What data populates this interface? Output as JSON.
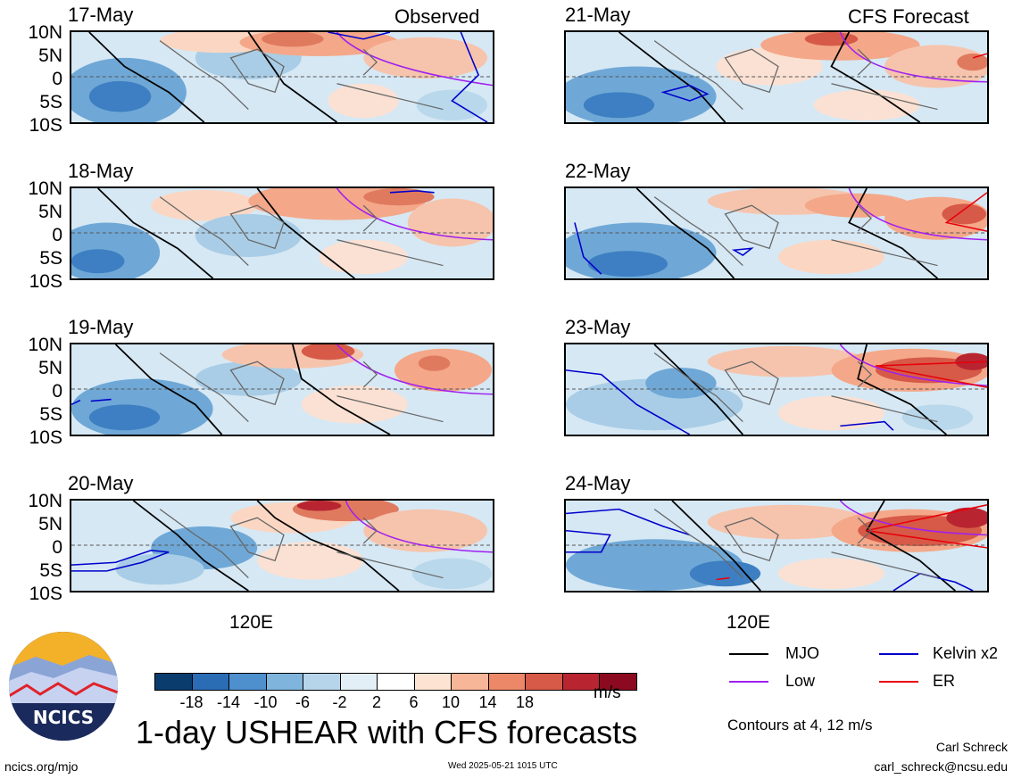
{
  "header": {
    "observed_label": "Observed",
    "forecast_label": "CFS Forecast"
  },
  "lat_labels": [
    "10N",
    "5N",
    "0",
    "5S",
    "10S"
  ],
  "lon_label": "120E",
  "panels_observed": [
    {
      "date": "17-May"
    },
    {
      "date": "18-May"
    },
    {
      "date": "19-May"
    },
    {
      "date": "20-May"
    }
  ],
  "panels_forecast": [
    {
      "date": "21-May"
    },
    {
      "date": "22-May"
    },
    {
      "date": "23-May"
    },
    {
      "date": "24-May"
    }
  ],
  "colorbar": {
    "colors": [
      "#0b3c6e",
      "#2a6db5",
      "#4e8fce",
      "#7fb4dc",
      "#b6d5ea",
      "#e3eff7",
      "#ffffff",
      "#fde3d2",
      "#f7b697",
      "#ec8868",
      "#d65a47",
      "#b82531",
      "#8c0a1f"
    ],
    "labels": [
      "-18",
      "-14",
      "-10",
      "-6",
      "-2",
      "2",
      "6",
      "10",
      "14",
      "18"
    ],
    "units": "m/s"
  },
  "legend": {
    "mjo": {
      "label": "MJO",
      "color": "#000000"
    },
    "low": {
      "label": "Low",
      "color": "#a020f0"
    },
    "kelvin": {
      "label": "Kelvin x2",
      "color": "#0000cd"
    },
    "er": {
      "label": "ER",
      "color": "#e8000b"
    },
    "contours_note": "Contours at 4, 12 m/s"
  },
  "title": "1-day USHEAR with CFS forecasts",
  "logo": {
    "text": "NCICS"
  },
  "footer": {
    "url": "ncics.org/mjo",
    "timestamp": "Wed 2025-05-21 1015 UTC",
    "author": "Carl Schreck",
    "email": "carl_schreck@ncsu.edu"
  }
}
